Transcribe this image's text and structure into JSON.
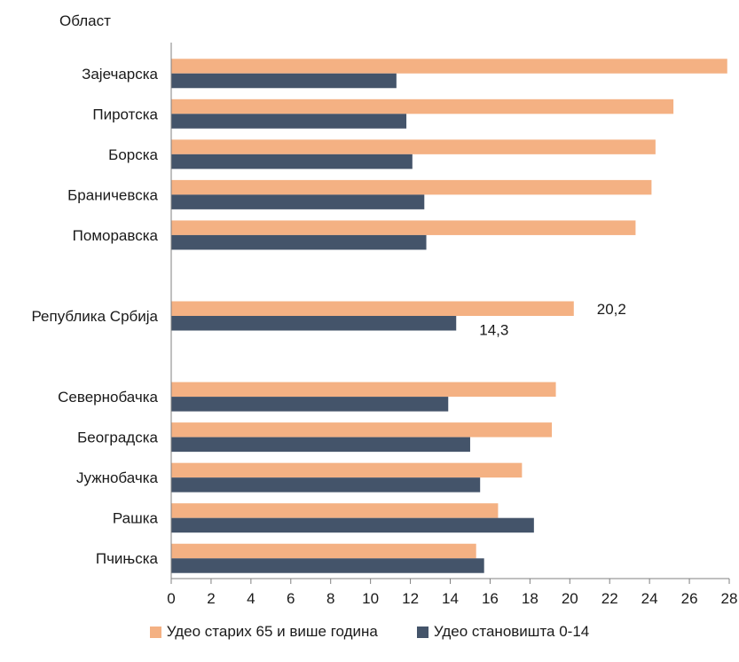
{
  "chart_data": {
    "type": "bar",
    "orientation": "horizontal",
    "title": "",
    "ylabel": "Област",
    "xlabel": "",
    "xlim": [
      0,
      28
    ],
    "xticks": [
      0,
      2,
      4,
      6,
      8,
      10,
      12,
      14,
      16,
      18,
      20,
      22,
      24,
      26,
      28
    ],
    "grid": false,
    "legend_position": "bottom",
    "categories": [
      "Зајечарска",
      "Пиротска",
      "Борска",
      "Браничевска",
      "Поморавска",
      "",
      "Република Србија",
      "",
      "Севернобачка",
      "Београдска",
      "Јужнобачка",
      "Рашка",
      "Пчињска"
    ],
    "series": [
      {
        "name": "Удео старих 65 и више година",
        "color": "#F4B183",
        "values": [
          27.9,
          25.2,
          24.3,
          24.1,
          23.3,
          null,
          20.2,
          null,
          19.3,
          19.1,
          17.6,
          16.4,
          15.3
        ]
      },
      {
        "name": "Удео становишта 0-14",
        "color": "#44546A",
        "values": [
          11.3,
          11.8,
          12.1,
          12.7,
          12.8,
          null,
          14.3,
          null,
          13.9,
          15.0,
          15.5,
          18.2,
          15.7
        ]
      }
    ],
    "annotations": [
      {
        "category": "Република Србија",
        "series": 0,
        "text": "20,2"
      },
      {
        "category": "Република Србија",
        "series": 1,
        "text": "14,3"
      }
    ]
  }
}
